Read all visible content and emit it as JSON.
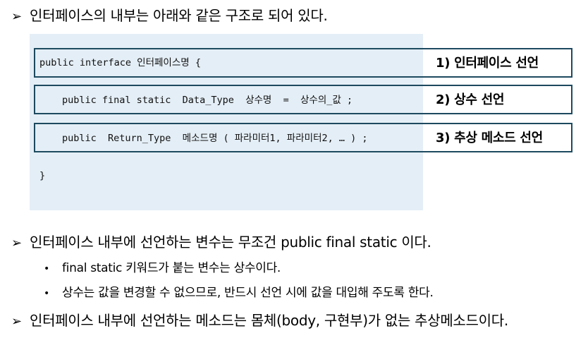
{
  "heading1": "인터페이스의 내부는 아래와 같은 구조로 되어 있다.",
  "code": {
    "line1": "public interface 인터페이스명 {",
    "line2": "public final static  Data_Type  상수명  =  상수의_값 ;",
    "line3": "public  Return_Type  메소드명 ( 파라미터1, 파라미터2, … ) ;",
    "line4": "}"
  },
  "labels": {
    "l1": "1) 인터페이스 선언",
    "l2": "2) 상수 선언",
    "l3": "3) 추상 메소드 선언"
  },
  "point1": "인터페이스 내부에 선언하는 변수는 무조건 public final static 이다.",
  "bullets": [
    "final static 키워드가 붙는 변수는 상수이다.",
    "상수는 값을 변경할 수 없으므로, 반드시 선언 시에 값을 대입해 주도록 한다."
  ],
  "point2": "인터페이스 내부에 선언하는 메소드는 몸체(body, 구현부)가 없는 추상메소드이다.",
  "icons": {
    "arrow": "➢",
    "dot": "•"
  }
}
